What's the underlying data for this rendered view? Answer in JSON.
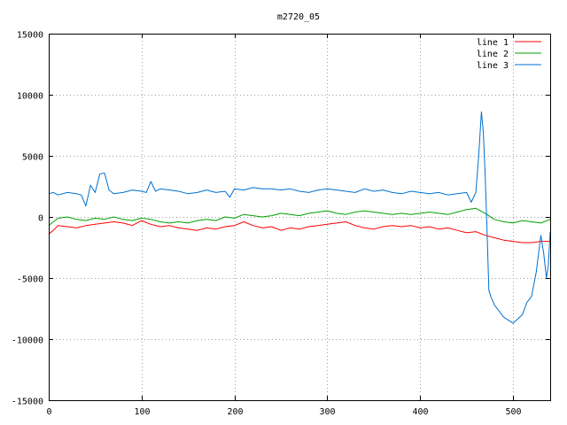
{
  "chart_data": {
    "type": "line",
    "title": "m2720_05",
    "xlabel": "",
    "ylabel": "",
    "xlim": [
      0,
      540
    ],
    "ylim": [
      -15000,
      15000
    ],
    "xticks": [
      0,
      100,
      200,
      300,
      400,
      500
    ],
    "yticks": [
      -15000,
      -10000,
      -5000,
      0,
      5000,
      10000,
      15000
    ],
    "grid": true,
    "legend_position": "top-right",
    "series": [
      {
        "name": "line 1",
        "color": "#ff0000",
        "x": [
          0,
          5,
          10,
          20,
          30,
          40,
          50,
          60,
          70,
          80,
          90,
          100,
          110,
          120,
          130,
          140,
          150,
          160,
          170,
          180,
          190,
          200,
          210,
          220,
          230,
          240,
          250,
          260,
          270,
          280,
          290,
          300,
          310,
          320,
          330,
          340,
          350,
          360,
          370,
          380,
          390,
          400,
          410,
          420,
          430,
          440,
          450,
          460,
          470,
          480,
          490,
          500,
          510,
          520,
          530,
          540
        ],
        "y": [
          -1400,
          -1100,
          -700,
          -800,
          -900,
          -700,
          -600,
          -500,
          -400,
          -500,
          -700,
          -300,
          -600,
          -800,
          -700,
          -900,
          -1000,
          -1100,
          -900,
          -1000,
          -800,
          -700,
          -400,
          -700,
          -900,
          -800,
          -1100,
          -900,
          -1000,
          -800,
          -700,
          -600,
          -500,
          -400,
          -700,
          -900,
          -1000,
          -800,
          -700,
          -800,
          -700,
          -900,
          -800,
          -1000,
          -900,
          -1100,
          -1300,
          -1200,
          -1500,
          -1700,
          -1900,
          -2000,
          -2100,
          -2100,
          -2000,
          -2000
        ]
      },
      {
        "name": "line 2",
        "color": "#00a000",
        "x": [
          0,
          5,
          10,
          20,
          30,
          40,
          50,
          60,
          70,
          80,
          90,
          100,
          110,
          120,
          130,
          140,
          150,
          160,
          170,
          180,
          190,
          200,
          210,
          220,
          230,
          240,
          250,
          260,
          270,
          280,
          290,
          300,
          310,
          320,
          330,
          340,
          350,
          360,
          370,
          380,
          390,
          400,
          410,
          420,
          430,
          440,
          450,
          460,
          470,
          480,
          490,
          500,
          510,
          520,
          530,
          540
        ],
        "y": [
          -700,
          -400,
          -100,
          0,
          -200,
          -300,
          -100,
          -200,
          0,
          -200,
          -300,
          -100,
          -200,
          -400,
          -500,
          -400,
          -500,
          -300,
          -200,
          -300,
          0,
          -100,
          200,
          100,
          0,
          100,
          300,
          200,
          100,
          300,
          400,
          500,
          300,
          200,
          400,
          500,
          400,
          300,
          200,
          300,
          200,
          300,
          400,
          300,
          200,
          400,
          600,
          700,
          300,
          -200,
          -400,
          -500,
          -300,
          -400,
          -500,
          -200
        ]
      },
      {
        "name": "line 3",
        "color": "#0070d0",
        "x": [
          0,
          5,
          10,
          20,
          30,
          35,
          40,
          45,
          50,
          55,
          60,
          65,
          70,
          80,
          90,
          100,
          105,
          110,
          115,
          120,
          130,
          140,
          150,
          160,
          170,
          180,
          190,
          195,
          200,
          210,
          220,
          230,
          240,
          250,
          260,
          270,
          280,
          290,
          300,
          310,
          320,
          330,
          340,
          350,
          360,
          370,
          380,
          390,
          400,
          410,
          420,
          430,
          440,
          450,
          455,
          460,
          463,
          466,
          468,
          470,
          472,
          474,
          476,
          480,
          490,
          500,
          510,
          515,
          520,
          525,
          530,
          533,
          536,
          538,
          540
        ],
        "y": [
          1900,
          2000,
          1800,
          2000,
          1900,
          1800,
          900,
          2600,
          2000,
          3500,
          3600,
          2200,
          1900,
          2000,
          2200,
          2100,
          2000,
          2900,
          2100,
          2300,
          2200,
          2100,
          1900,
          2000,
          2200,
          2000,
          2100,
          1600,
          2300,
          2200,
          2400,
          2300,
          2300,
          2200,
          2300,
          2100,
          2000,
          2200,
          2300,
          2200,
          2100,
          2000,
          2300,
          2100,
          2200,
          2000,
          1900,
          2100,
          2000,
          1900,
          2000,
          1800,
          1900,
          2000,
          1200,
          2000,
          5000,
          8600,
          7000,
          3500,
          -1000,
          -6000,
          -6500,
          -7200,
          -8200,
          -8700,
          -8000,
          -7000,
          -6500,
          -4500,
          -1500,
          -3000,
          -5000,
          -4000,
          -1200
        ]
      }
    ]
  }
}
